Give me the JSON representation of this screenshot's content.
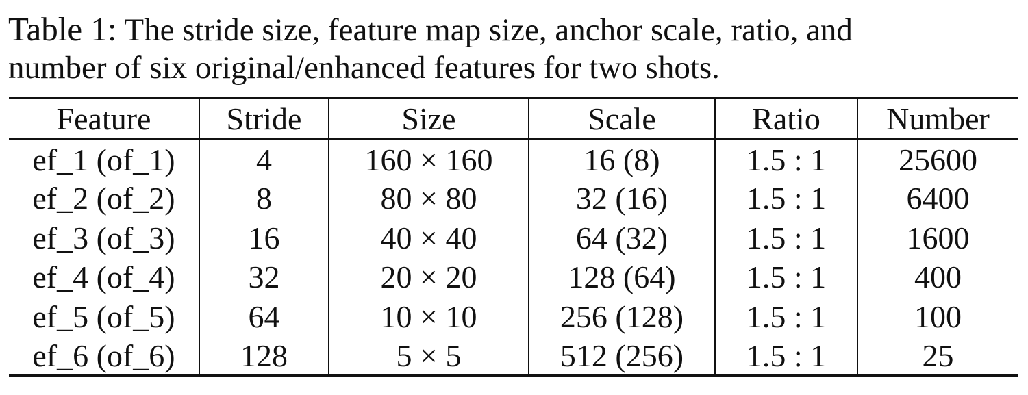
{
  "caption": {
    "label": "Table 1:",
    "line1": "The stride size, feature map size, anchor scale, ratio, and",
    "line2": "number of six original/enhanced features for two shots."
  },
  "table": {
    "headers": [
      "Feature",
      "Stride",
      "Size",
      "Scale",
      "Ratio",
      "Number"
    ],
    "rows": [
      [
        "ef_1 (of_1)",
        "4",
        "160 × 160",
        "16 (8)",
        "1.5 : 1",
        "25600"
      ],
      [
        "ef_2 (of_2)",
        "8",
        "80 × 80",
        "32 (16)",
        "1.5 : 1",
        "6400"
      ],
      [
        "ef_3 (of_3)",
        "16",
        "40 × 40",
        "64 (32)",
        "1.5 : 1",
        "1600"
      ],
      [
        "ef_4 (of_4)",
        "32",
        "20 × 20",
        "128 (64)",
        "1.5 : 1",
        "400"
      ],
      [
        "ef_5 (of_5)",
        "64",
        "10 × 10",
        "256 (128)",
        "1.5 : 1",
        "100"
      ],
      [
        "ef_6 (of_6)",
        "128",
        "5 × 5",
        "512 (256)",
        "1.5 : 1",
        "25"
      ]
    ]
  }
}
